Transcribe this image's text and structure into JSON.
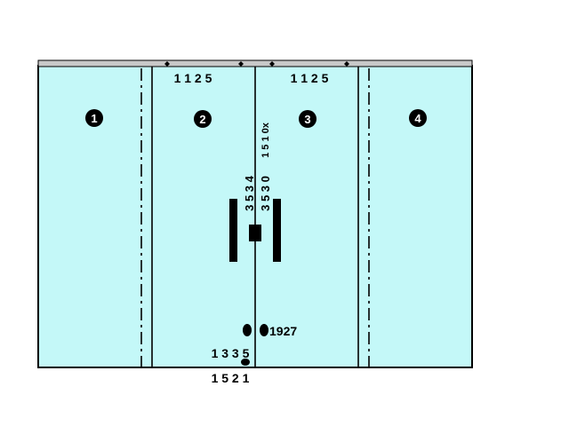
{
  "zones": [
    {
      "label": "1"
    },
    {
      "label": "2"
    },
    {
      "label": "3"
    },
    {
      "label": "4"
    }
  ],
  "top_labels": {
    "left": "1 1 2 5",
    "right": "1 1 2 5"
  },
  "vertical_labels": {
    "a": "3 5 3 4",
    "b": "3 5 3 0",
    "c": "1 5 1 0x"
  },
  "marker_label": "1927",
  "bottom_labels": {
    "upper": "1 3 3 5",
    "lower": "1 5 2 1"
  },
  "colors": {
    "fill": "#c4f8f8",
    "stroke": "#000000",
    "rail": "#c8c8c8",
    "background": "#ffffff"
  }
}
